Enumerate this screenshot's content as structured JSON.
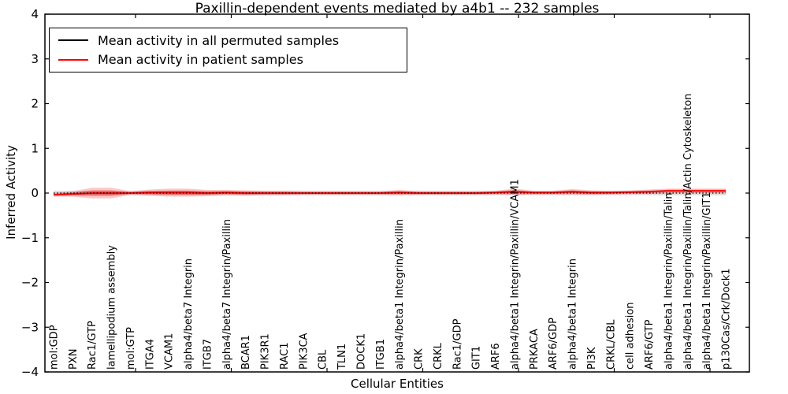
{
  "chart_data": {
    "type": "line",
    "title": "Paxillin-dependent events mediated by a4b1 -- 232 samples",
    "xlabel": "Cellular Entities",
    "ylabel": "Inferred Activity",
    "ylim": [
      -4,
      4
    ],
    "yticks": [
      -4,
      -3,
      -2,
      -1,
      0,
      1,
      2,
      3,
      4
    ],
    "ytick_labels": [
      "−4",
      "−3",
      "−2",
      "−1",
      "0",
      "1",
      "2",
      "3",
      "4"
    ],
    "grid": false,
    "legend_position": "upper left",
    "categories": [
      "mol:GDP",
      "PXN",
      "Rac1/GTP",
      "lamellipodium assembly",
      "mol:GTP",
      "ITGA4",
      "VCAM1",
      "alpha4/beta7 Integrin",
      "ITGB7",
      "alpha4/beta7 Integrin/Paxillin",
      "BCAR1",
      "PIK3R1",
      "RAC1",
      "PIK3CA",
      "CBL",
      "TLN1",
      "DOCK1",
      "ITGB1",
      "alpha4/beta1 Integrin/Paxillin",
      "CRK",
      "CRKL",
      "Rac1/GDP",
      "GIT1",
      "ARF6",
      "alpha4/beta1 Integrin/Paxillin/VCAM1",
      "PRKACA",
      "ARF6/GDP",
      "alpha4/beta1 Integrin",
      "PI3K",
      "CRKL/CBL",
      "cell adhesion",
      "ARF6/GTP",
      "alpha4/beta1 Integrin/Paxillin/Talin",
      "alpha4/beta1 Integrin/Paxillin/Talin/Actin Cytoskeleton",
      "alpha4/beta1 Integrin/Paxillin/GIT1",
      "p130Cas/Crk/Dock1"
    ],
    "series": [
      {
        "name": "Mean activity in all permuted samples",
        "color": "#000000",
        "line_style": "dashed",
        "values": [
          0,
          0,
          0,
          0,
          0,
          0,
          0,
          0,
          0,
          0,
          0,
          0,
          0,
          0,
          0,
          0,
          0,
          0,
          0,
          0,
          0,
          0,
          0,
          0,
          0,
          0,
          0,
          0,
          0,
          0,
          0,
          0,
          0,
          0,
          0,
          0
        ]
      },
      {
        "name": "Mean activity in patient samples",
        "color": "#ff0000",
        "line_style": "solid",
        "values": [
          -0.04,
          -0.02,
          0,
          0,
          0,
          0.01,
          0.01,
          0.01,
          0,
          0.01,
          0,
          0,
          0,
          0,
          0,
          0,
          0,
          0,
          0.01,
          0,
          0,
          0,
          0,
          0.01,
          0.03,
          0.01,
          0.01,
          0.03,
          0.01,
          0.01,
          0.02,
          0.03,
          0.05,
          0.05,
          0.05,
          0.05
        ]
      }
    ],
    "bands": [
      {
        "name": "permuted-spread-band",
        "color": "#aaaaaa",
        "opacity": 0.4,
        "center_series": 0,
        "half_widths": [
          0.05,
          0.05,
          0.05,
          0.05,
          0.05,
          0.05,
          0.05,
          0.05,
          0.05,
          0.05,
          0.05,
          0.05,
          0.05,
          0.05,
          0.05,
          0.05,
          0.05,
          0.05,
          0.05,
          0.05,
          0.05,
          0.05,
          0.05,
          0.05,
          0.05,
          0.05,
          0.05,
          0.05,
          0.05,
          0.05,
          0.05,
          0.05,
          0.05,
          0.05,
          0.05,
          0.05
        ]
      },
      {
        "name": "patient-spread-outer-band",
        "color": "#ff0000",
        "opacity": 0.22,
        "center_series": 1,
        "half_widths": [
          0.04,
          0.06,
          0.12,
          0.12,
          0.04,
          0.07,
          0.09,
          0.09,
          0.07,
          0.06,
          0.06,
          0.05,
          0.05,
          0.04,
          0.04,
          0.04,
          0.04,
          0.04,
          0.06,
          0.04,
          0.04,
          0.04,
          0.04,
          0.04,
          0.07,
          0.04,
          0.04,
          0.06,
          0.05,
          0.04,
          0.04,
          0.05,
          0.05,
          0.05,
          0.05,
          0.05
        ]
      },
      {
        "name": "patient-spread-inner-band",
        "color": "#cc0000",
        "opacity": 0.38,
        "center_series": 1,
        "half_widths": [
          0.02,
          0.03,
          0.06,
          0.06,
          0.02,
          0.035,
          0.045,
          0.045,
          0.035,
          0.03,
          0.03,
          0.025,
          0.025,
          0.02,
          0.02,
          0.02,
          0.02,
          0.02,
          0.03,
          0.02,
          0.02,
          0.02,
          0.02,
          0.02,
          0.035,
          0.02,
          0.02,
          0.03,
          0.025,
          0.02,
          0.02,
          0.025,
          0.025,
          0.025,
          0.025,
          0.025
        ]
      }
    ]
  }
}
